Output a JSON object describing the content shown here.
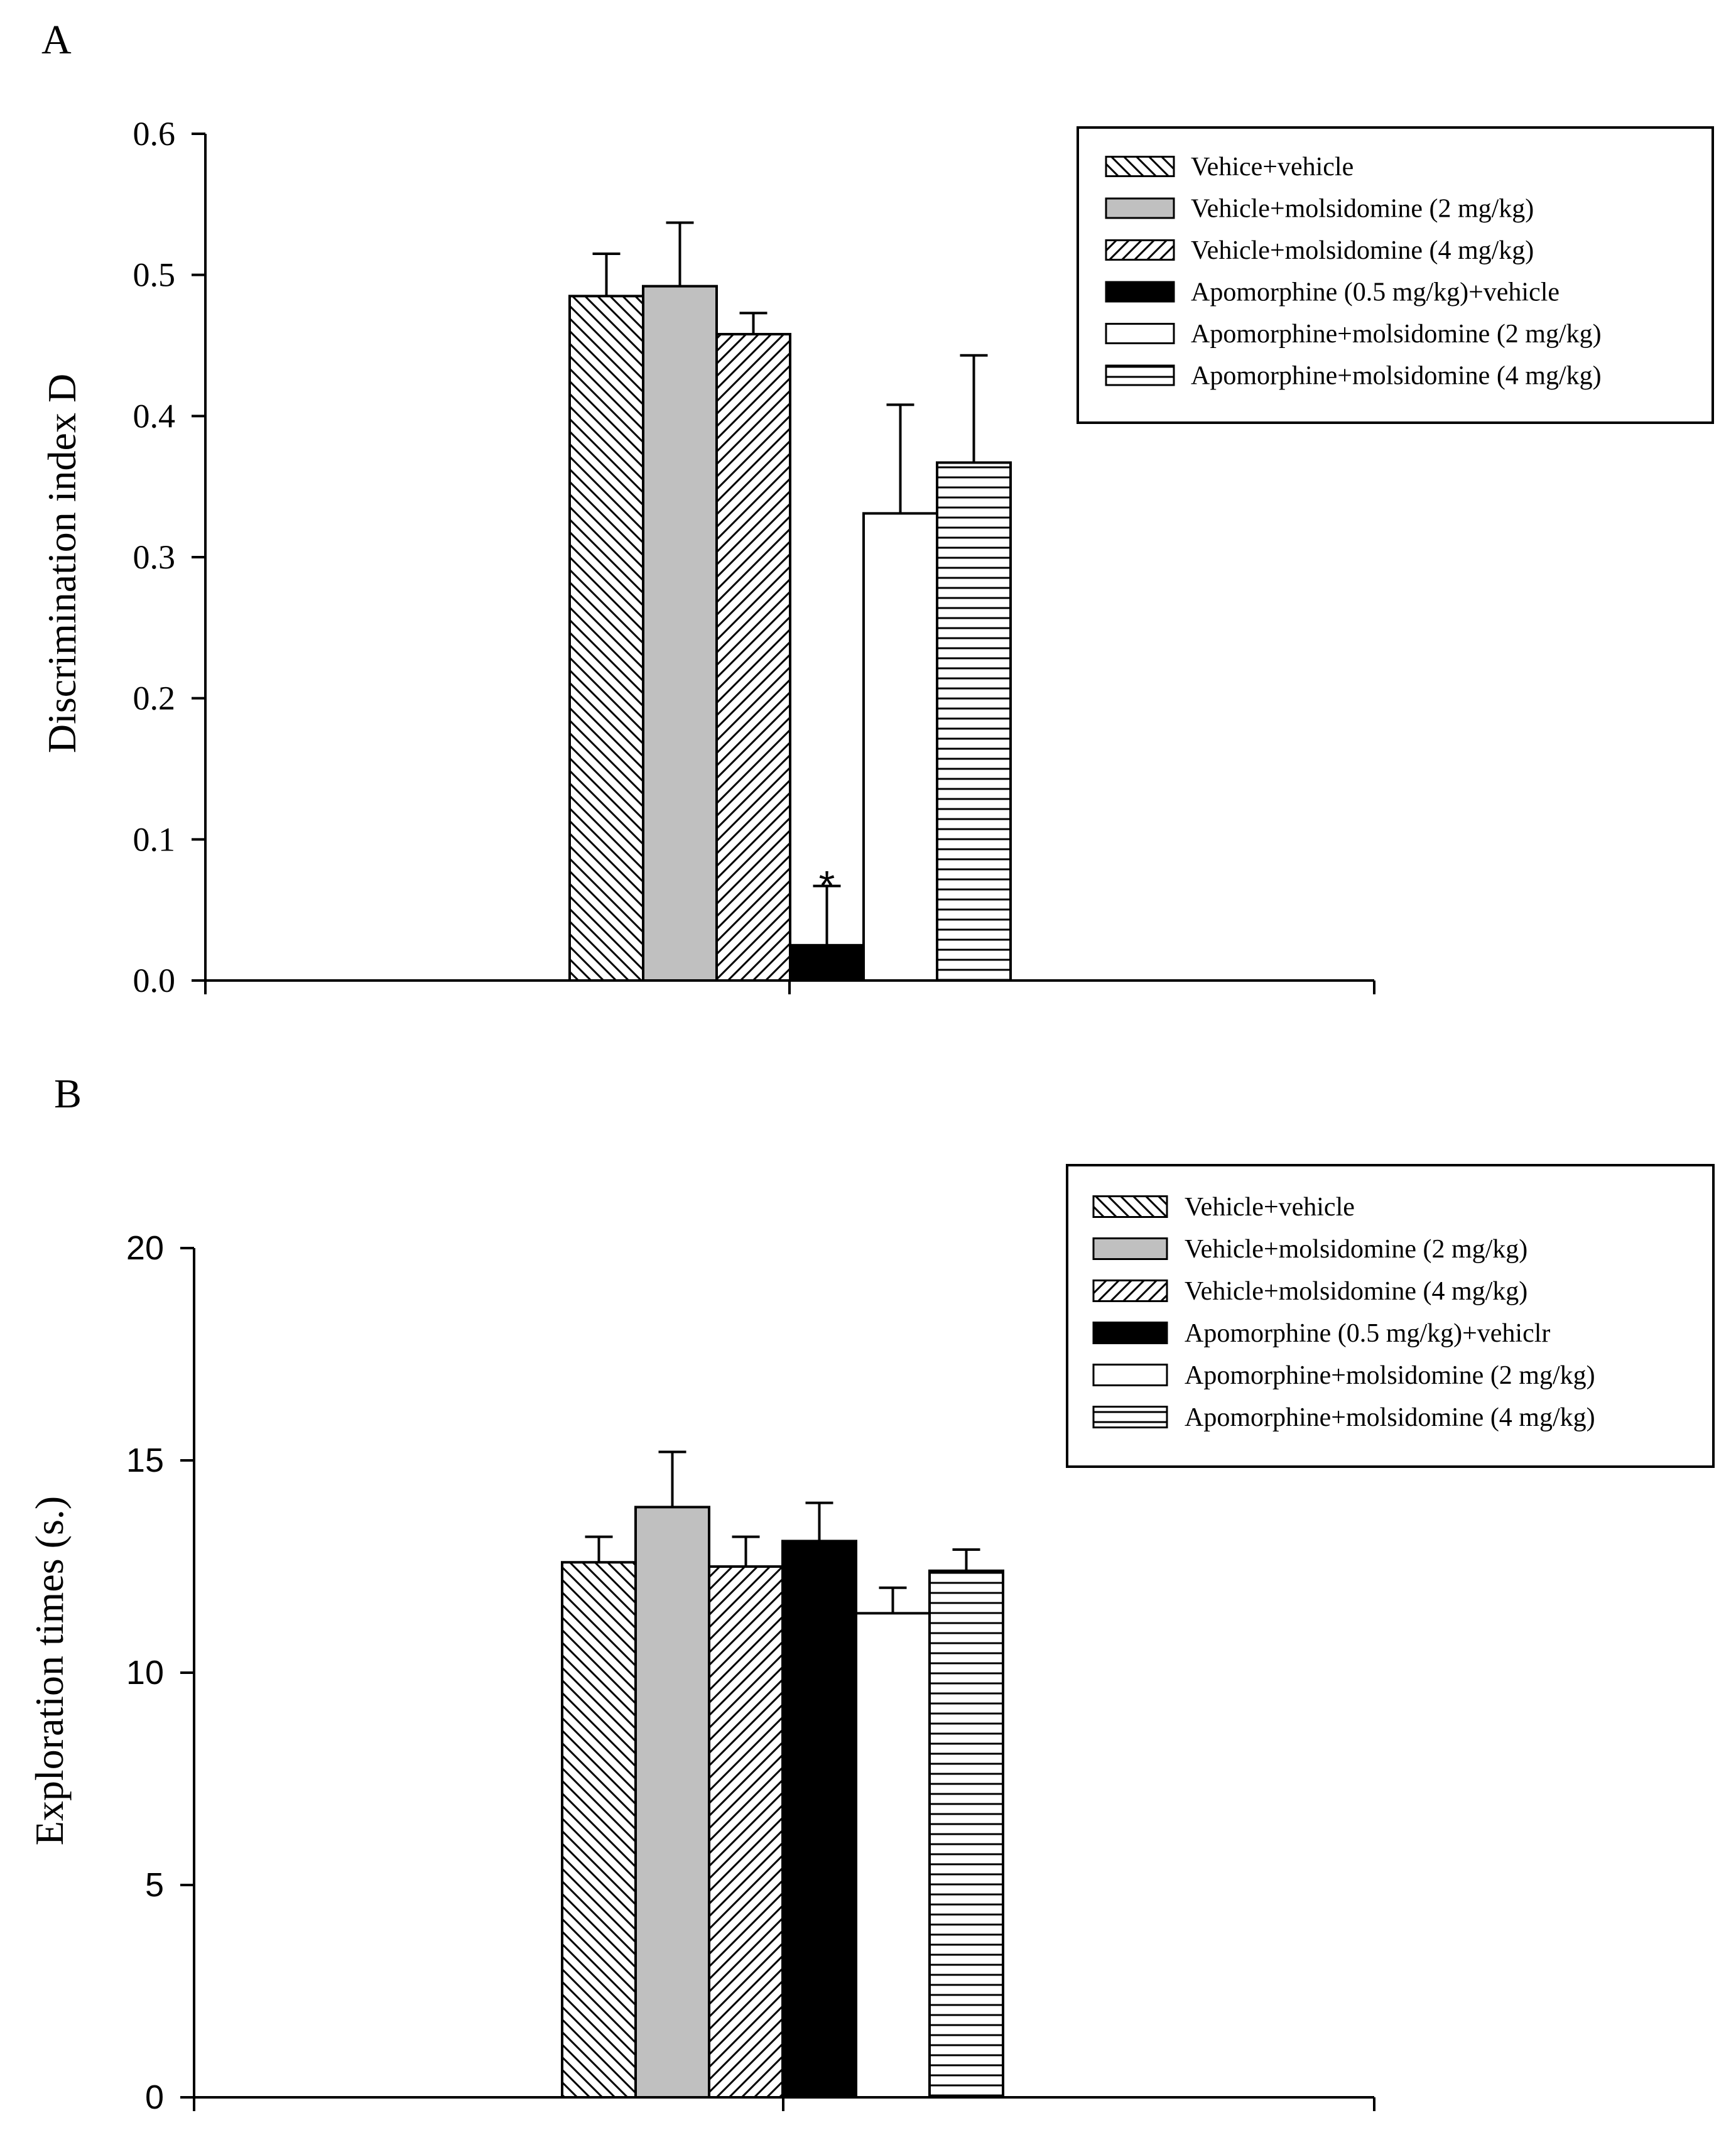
{
  "figure": {
    "panels": [
      "A",
      "B"
    ]
  },
  "colors": {
    "axis": "#000000",
    "bar_outline": "#000000",
    "solid_gray": "#c0c0c0",
    "solid_black": "#000000",
    "white": "#ffffff"
  },
  "chart_data": [
    {
      "panel": "A",
      "type": "bar",
      "title": "",
      "xlabel": "",
      "ylabel": "Discrimination index D",
      "ylim": [
        0,
        0.6
      ],
      "yticks": [
        "0.0",
        "0.1",
        "0.2",
        "0.3",
        "0.4",
        "0.5",
        "0.6"
      ],
      "ytick_font": "serif",
      "legend_position": "top-right",
      "series": [
        {
          "name": "Vehice+vehicle",
          "pattern": "diag-down",
          "value": 0.485,
          "error": 0.03
        },
        {
          "name": "Vehicle+molsidomine (2 mg/kg)",
          "pattern": "solid-gray",
          "value": 0.492,
          "error": 0.045
        },
        {
          "name": "Vehicle+molsidomine (4 mg/kg)",
          "pattern": "diag-up",
          "value": 0.458,
          "error": 0.015
        },
        {
          "name": "Apomorphine (0.5 mg/kg)+vehicle",
          "pattern": "solid-black",
          "value": 0.025,
          "error": 0.042
        },
        {
          "name": "Apomorphine+molsidomine (2 mg/kg)",
          "pattern": "white",
          "value": 0.331,
          "error": 0.077
        },
        {
          "name": "Apomorphine+molsidomine (4 mg/kg)",
          "pattern": "horizontal",
          "value": 0.367,
          "error": 0.076
        }
      ],
      "annotations": [
        {
          "text": "*",
          "series_index": 3
        }
      ]
    },
    {
      "panel": "B",
      "type": "bar",
      "title": "",
      "xlabel": "",
      "ylabel": "Exploration times (s.)",
      "ylim": [
        0,
        20
      ],
      "yticks": [
        "0",
        "5",
        "10",
        "15",
        "20"
      ],
      "ytick_font": "sans",
      "legend_position": "top-right",
      "series": [
        {
          "name": "Vehicle+vehicle",
          "pattern": "diag-down",
          "value": 12.6,
          "error": 0.6
        },
        {
          "name": "Vehicle+molsidomine (2 mg/kg)",
          "pattern": "solid-gray",
          "value": 13.9,
          "error": 1.3
        },
        {
          "name": "Vehicle+molsidomine (4 mg/kg)",
          "pattern": "diag-up",
          "value": 12.5,
          "error": 0.7
        },
        {
          "name": "Apomorphine (0.5 mg/kg)+vehiclr",
          "pattern": "solid-black",
          "value": 13.1,
          "error": 0.9
        },
        {
          "name": "Apomorphine+molsidomine (2 mg/kg)",
          "pattern": "white",
          "value": 11.4,
          "error": 0.6
        },
        {
          "name": "Apomorphine+molsidomine (4 mg/kg)",
          "pattern": "horizontal",
          "value": 12.4,
          "error": 0.5
        }
      ],
      "annotations": []
    }
  ]
}
